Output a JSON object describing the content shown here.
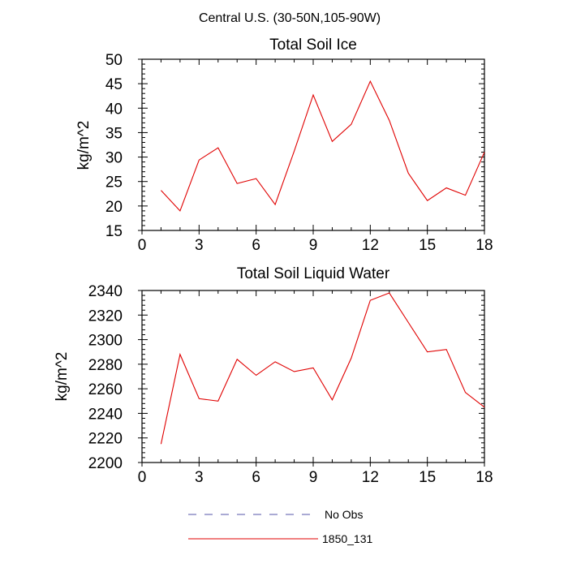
{
  "figure_title": "Central U.S. (30-50N,105-90W)",
  "chart_data": [
    {
      "type": "line",
      "title": "Total Soil Ice",
      "xlabel": "",
      "ylabel": "kg/m^2",
      "xlim": [
        0,
        18
      ],
      "ylim": [
        15,
        50
      ],
      "xticks": [
        0,
        3,
        6,
        9,
        12,
        15,
        18
      ],
      "yticks": [
        15,
        20,
        25,
        30,
        35,
        40,
        45,
        50
      ],
      "x": [
        1,
        2,
        3,
        4,
        5,
        6,
        7,
        8,
        9,
        10,
        11,
        12,
        13,
        14,
        15,
        16,
        17,
        18
      ],
      "series": [
        {
          "name": "1850_131",
          "color": "#e00000",
          "values": [
            23.2,
            19.0,
            29.4,
            31.9,
            24.6,
            25.6,
            20.3,
            31.2,
            42.7,
            33.2,
            36.7,
            45.5,
            37.5,
            26.7,
            21.1,
            23.7,
            22.2,
            31.0
          ]
        }
      ]
    },
    {
      "type": "line",
      "title": "Total Soil Liquid Water",
      "xlabel": "",
      "ylabel": "kg/m^2",
      "xlim": [
        0,
        18
      ],
      "ylim": [
        2200,
        2340
      ],
      "xticks": [
        0,
        3,
        6,
        9,
        12,
        15,
        18
      ],
      "yticks": [
        2200,
        2220,
        2240,
        2260,
        2280,
        2300,
        2320,
        2340
      ],
      "x": [
        1,
        2,
        3,
        4,
        5,
        6,
        7,
        8,
        9,
        10,
        11,
        12,
        13,
        14,
        15,
        16,
        17,
        18
      ],
      "series": [
        {
          "name": "1850_131",
          "color": "#e00000",
          "values": [
            2215,
            2288,
            2252,
            2250,
            2284,
            2271,
            2282,
            2274,
            2277,
            2251,
            2285,
            2332,
            2338,
            2314,
            2290,
            2292,
            2257,
            2245
          ]
        }
      ]
    }
  ],
  "legend": [
    {
      "label": "No Obs",
      "color": "#5555aa",
      "style": "dashed"
    },
    {
      "label": "1850_131",
      "color": "#e00000",
      "style": "solid"
    }
  ]
}
